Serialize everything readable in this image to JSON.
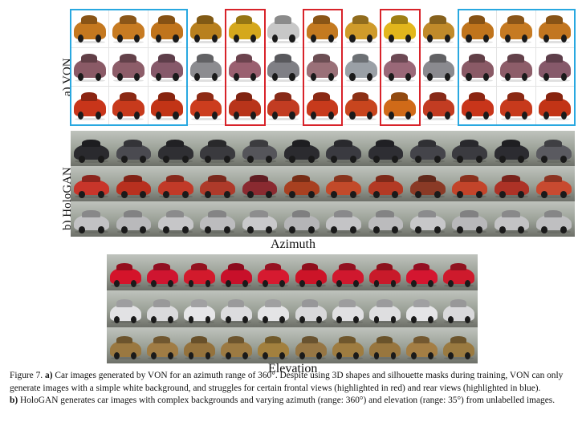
{
  "figure": {
    "von_label": "a) VON",
    "hologan_label": "b) HoloGAN",
    "azimuth_label": "Azimuth",
    "elevation_label": "Elevation"
  },
  "von": {
    "columns": 13,
    "rows": [
      {
        "colors": [
          "#c4781f",
          "#c77b22",
          "#c0741c",
          "#b8801e",
          "#d5a81c",
          "#c7c7c7",
          "#c47a20",
          "#cf9b2a",
          "#e2b61c",
          "#c08a2a",
          "#c0741c",
          "#c67a22",
          "#c27620"
        ]
      },
      {
        "colors": [
          "#8a5a66",
          "#8d5d69",
          "#86596a",
          "#8c8c90",
          "#9a6070",
          "#7f7f85",
          "#9a7078",
          "#9aa0a6",
          "#9a6878",
          "#8a8a8f",
          "#8a5a66",
          "#8d5d69",
          "#86596a"
        ]
      },
      {
        "colors": [
          "#c8351a",
          "#c73a1c",
          "#c23416",
          "#cc3d1e",
          "#b8341a",
          "#c23c22",
          "#c73a1c",
          "#c8451e",
          "#d06a18",
          "#c23c22",
          "#c8351a",
          "#c73a1c",
          "#c23416"
        ]
      }
    ],
    "red_highlight_columns": [
      4,
      6,
      8
    ],
    "blue_highlight_ranges": [
      [
        0,
        2
      ],
      [
        10,
        12
      ]
    ]
  },
  "hologan": {
    "columns": 12,
    "rows": [
      {
        "colors": [
          "#2a2a2e",
          "#4a4a50",
          "#2f2f33",
          "#3a3a3e",
          "#55555a",
          "#2b2b2f",
          "#3a3a40",
          "#2e2e33",
          "#44444a",
          "#3b3b40",
          "#2c2c31",
          "#5a5a60"
        ]
      },
      {
        "colors": [
          "#c8352a",
          "#b8301f",
          "#c13a28",
          "#ae3a2a",
          "#8a2a30",
          "#a84020",
          "#c24a2a",
          "#b33a24",
          "#8a3a26",
          "#c3442a",
          "#ad3226",
          "#c84a30"
        ]
      },
      {
        "colors": [
          "#c2c2c4",
          "#b9b9bb",
          "#c6c6c8",
          "#bcbcbe",
          "#c9c9cb",
          "#b5b5b7",
          "#c4c4c6",
          "#bbbbbd",
          "#c7c7c9",
          "#b8b8ba",
          "#c3c3c5",
          "#bfbfc1"
        ]
      }
    ]
  },
  "elevation": {
    "columns": 10,
    "rows": [
      {
        "colors": [
          "#d4142a",
          "#cf1530",
          "#d21a2c",
          "#c8102a",
          "#d61a30",
          "#cc1428",
          "#d0182e",
          "#c81a2a",
          "#d41630",
          "#ce1a2c"
        ]
      },
      {
        "colors": [
          "#e2e2e4",
          "#dadadc",
          "#e6e6e8",
          "#dcdcde",
          "#e4e4e6",
          "#d8d8da",
          "#e0e0e2",
          "#dedee0",
          "#e5e5e7",
          "#d9d9db"
        ]
      },
      {
        "colors": [
          "#9a7840",
          "#a07c44",
          "#94723c",
          "#9c7a42",
          "#a2803e",
          "#967644",
          "#9e7c40",
          "#98763e",
          "#a47e44",
          "#9a7a40"
        ]
      }
    ]
  },
  "caption": {
    "fig_num": "Figure 7.",
    "a_tag": "a)",
    "a_text": " Car images generated by VON for an azimuth range of 360°. Despite using 3D shapes and silhouette masks during training, VON can only generate images with a simple white background, and struggles for certain frontal views (highlighted in red) and rear views (highlighted in blue).",
    "b_tag": "b)",
    "b_text": " HoloGAN generates car images with complex backgrounds and varying azimuth (range: 360°) and elevation (range: 35°) from unlabelled images."
  }
}
